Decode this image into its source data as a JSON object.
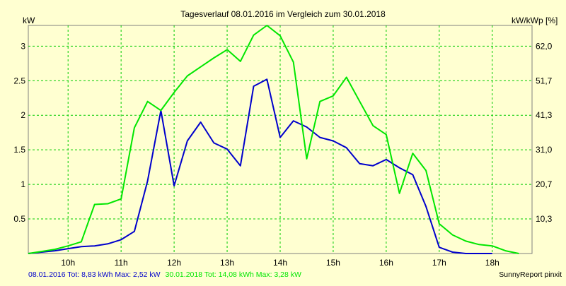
{
  "chart_data": {
    "type": "line",
    "title": "Tagesverlauf 08.01.2016 im Vergleich zum 30.01.2018",
    "ylabel": "kW",
    "y2label": "kW/kWp [%]",
    "xlabel": "",
    "xlim": [
      9.25,
      18.75
    ],
    "ylim": [
      0,
      3.3
    ],
    "x_ticks": [
      {
        "x": 10,
        "label": "10h"
      },
      {
        "x": 11,
        "label": "11h"
      },
      {
        "x": 12,
        "label": "12h"
      },
      {
        "x": 13,
        "label": "13h"
      },
      {
        "x": 14,
        "label": "14h"
      },
      {
        "x": 15,
        "label": "15h"
      },
      {
        "x": 16,
        "label": "16h"
      },
      {
        "x": 17,
        "label": "17h"
      },
      {
        "x": 18,
        "label": "18h"
      }
    ],
    "y_ticks": [
      {
        "y": 0.5,
        "label": "0.5"
      },
      {
        "y": 1,
        "label": "1"
      },
      {
        "y": 1.5,
        "label": "1.5"
      },
      {
        "y": 2,
        "label": "2"
      },
      {
        "y": 2.5,
        "label": "2.5"
      },
      {
        "y": 3,
        "label": "3"
      }
    ],
    "y2_ticks": [
      {
        "y": 0.5,
        "label": "10,3"
      },
      {
        "y": 1,
        "label": "20,7"
      },
      {
        "y": 1.5,
        "label": "31,0"
      },
      {
        "y": 2,
        "label": "41,3"
      },
      {
        "y": 2.5,
        "label": "51,7"
      },
      {
        "y": 3,
        "label": "62,0"
      }
    ],
    "grid": true,
    "series": [
      {
        "name": "08.01.2016",
        "color": "#0000cc",
        "x": [
          9.25,
          9.5,
          9.75,
          10.0,
          10.25,
          10.5,
          10.75,
          11.0,
          11.25,
          11.5,
          11.75,
          12.0,
          12.25,
          12.5,
          12.75,
          13.0,
          13.25,
          13.5,
          13.75,
          14.0,
          14.25,
          14.5,
          14.75,
          15.0,
          15.25,
          15.5,
          15.75,
          16.0,
          16.25,
          16.5,
          16.75,
          17.0,
          17.25,
          17.5,
          17.75,
          18.0
        ],
        "y": [
          0.0,
          0.02,
          0.04,
          0.07,
          0.1,
          0.11,
          0.14,
          0.2,
          0.32,
          1.05,
          2.07,
          0.98,
          1.63,
          1.9,
          1.6,
          1.51,
          1.27,
          2.42,
          2.52,
          1.68,
          1.92,
          1.83,
          1.68,
          1.63,
          1.53,
          1.3,
          1.27,
          1.36,
          1.24,
          1.14,
          0.68,
          0.09,
          0.02,
          0.0,
          0.0,
          0.0
        ]
      },
      {
        "name": "30.01.2018",
        "color": "#00e600",
        "x": [
          9.25,
          9.5,
          9.75,
          10.0,
          10.25,
          10.5,
          10.75,
          11.0,
          11.25,
          11.5,
          11.75,
          12.0,
          12.25,
          12.5,
          12.75,
          13.0,
          13.25,
          13.5,
          13.75,
          14.0,
          14.25,
          14.5,
          14.75,
          15.0,
          15.25,
          15.5,
          15.75,
          16.0,
          16.25,
          16.5,
          16.75,
          17.0,
          17.25,
          17.5,
          17.75,
          18.0,
          18.25,
          18.5
        ],
        "y": [
          0.0,
          0.03,
          0.06,
          0.11,
          0.17,
          0.71,
          0.72,
          0.79,
          1.82,
          2.2,
          2.07,
          2.33,
          2.57,
          2.7,
          2.83,
          2.95,
          2.78,
          3.16,
          3.3,
          3.15,
          2.77,
          1.37,
          2.2,
          2.28,
          2.55,
          2.2,
          1.85,
          1.72,
          0.87,
          1.45,
          1.2,
          0.43,
          0.27,
          0.18,
          0.13,
          0.11,
          0.04,
          0.0
        ]
      }
    ],
    "footer": [
      {
        "text": "08.01.2016 Tot: 8,83 kWh Max: 2,52 kW",
        "color": "#0000cc"
      },
      {
        "text": "30.01.2018 Tot: 14,08 kWh Max: 3,28 kW",
        "color": "#00e600"
      }
    ],
    "credit": "SunnyReport pinxit"
  }
}
